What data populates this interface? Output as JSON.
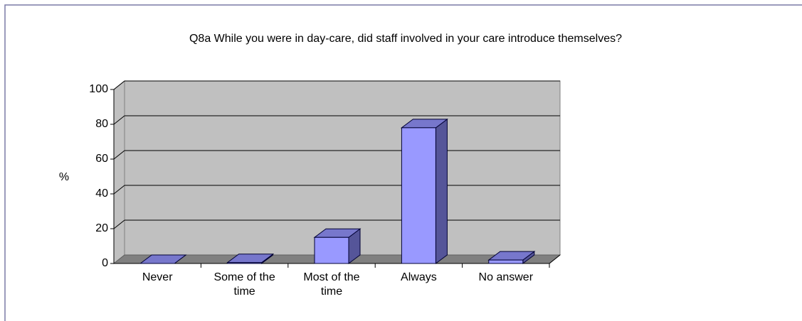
{
  "chart_data": {
    "type": "bar3d",
    "title": "Q8a While you were in day-care, did staff involved in your care introduce themselves?",
    "y_label": "%",
    "categories": [
      "Never",
      "Some of the time",
      "Most of the time",
      "Always",
      "No answer"
    ],
    "values": [
      0,
      0.5,
      15,
      78,
      2
    ],
    "color": "#9999ff",
    "ylim": [
      0,
      100
    ],
    "yticks": [
      0,
      20,
      40,
      60,
      80,
      100
    ],
    "grid": true
  }
}
